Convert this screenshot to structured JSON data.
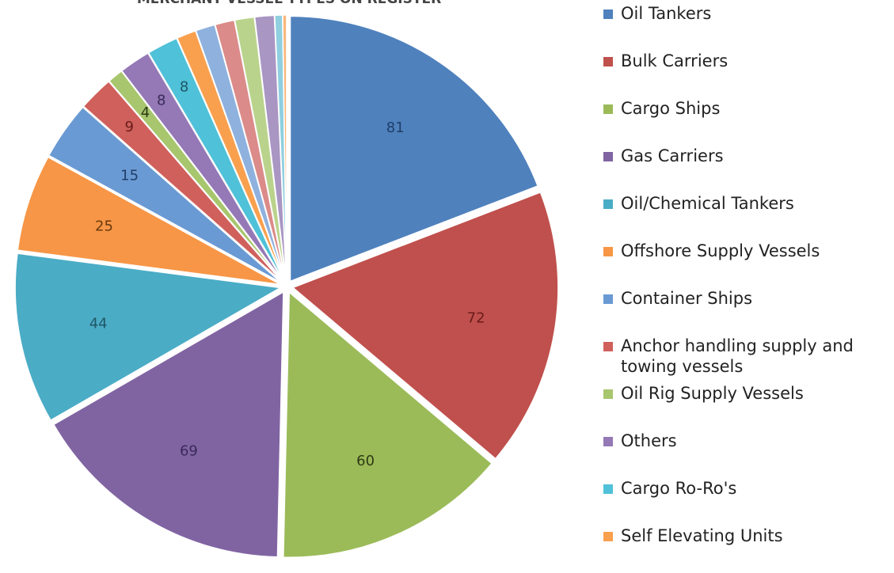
{
  "chart_data": {
    "type": "pie",
    "title": "MERCHANT VESSEL TYPES ON REGISTER",
    "categories": [
      "Oil Tankers",
      "Bulk Carriers",
      "Cargo Ships",
      "Gas Carriers",
      "Oil/Chemical Tankers",
      "Offshore Supply Vessels",
      "Container Ships",
      "Anchor handling supply and towing vessels",
      "Oil Rig Supply Vessels",
      "Others",
      "Cargo Ro-Ro's",
      "Self Elevating Units",
      null,
      null,
      null,
      null,
      null,
      null
    ],
    "values": [
      81,
      72,
      60,
      69,
      44,
      25,
      15,
      9,
      4,
      8,
      8,
      5,
      5,
      5,
      5,
      5,
      2,
      1
    ],
    "colors": [
      "#4f81bd",
      "#c0504d",
      "#9bbb59",
      "#8064a2",
      "#4bacc6",
      "#f79646",
      "#6a9ad3",
      "#d0605c",
      "#a7c66d",
      "#9479b6",
      "#4fc1d8",
      "#f9a04e",
      "#8fb1de",
      "#db8b89",
      "#bad38c",
      "#a996c3",
      "#8fcfe0",
      "#f9b77d"
    ],
    "label_colors": [
      "#1f3f6a",
      "#6a1c1a",
      "#2e3a14",
      "#3b2a5a",
      "#1f5866",
      "#6a3a10",
      "#1f3f6a",
      "#6a1c1a",
      "#2e3a14",
      "#3b2a5a",
      "#1f5866"
    ]
  }
}
